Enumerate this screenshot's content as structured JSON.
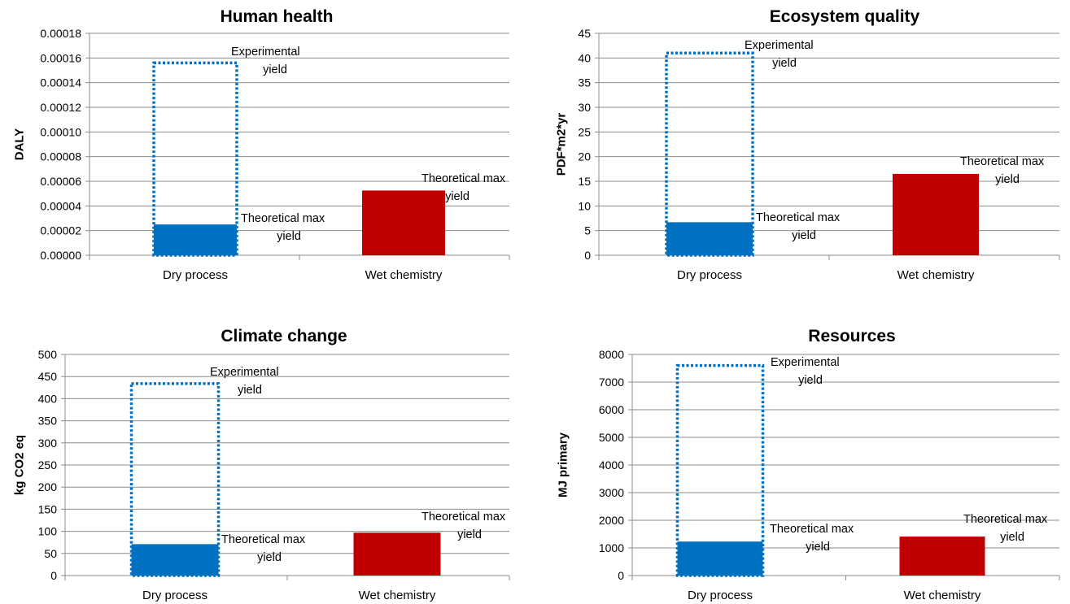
{
  "chart_data": [
    {
      "type": "bar",
      "title": "Human health",
      "ylabel": "DALY",
      "categories": [
        "Dry process",
        "Wet chemistry"
      ],
      "ylim": [
        0,
        0.00018
      ],
      "yticks": [
        "0.00000",
        "0.00002",
        "0.00004",
        "0.00006",
        "0.00008",
        "0.00010",
        "0.00012",
        "0.00014",
        "0.00016",
        "0.00018"
      ],
      "grid": true,
      "legend": "none",
      "series": [
        {
          "values": [
            2.5e-05,
            5.25e-05
          ],
          "colors": [
            "#0070c0",
            "#c00000"
          ]
        },
        {
          "values": [
            0.000156,
            null
          ],
          "style": "dotted-outline",
          "color": "#0070c0"
        }
      ],
      "annotations": [
        {
          "text": "Experimental yield",
          "lines": [
            "Experimental",
            "yield"
          ],
          "category": "Dry process",
          "y": 0.000156
        },
        {
          "text": "Theoretical max yield",
          "lines": [
            "Theoretical max",
            "yield"
          ],
          "category": "Dry process",
          "y": 2.5e-05
        },
        {
          "text": "Theoretical max yield",
          "lines": [
            "Theoretical max",
            "yield"
          ],
          "category": "Wet chemistry",
          "y": 5.25e-05
        }
      ]
    },
    {
      "type": "bar",
      "title": "Ecosystem quality",
      "ylabel": "PDF*m2*yr",
      "categories": [
        "Dry process",
        "Wet chemistry"
      ],
      "ylim": [
        0,
        45
      ],
      "yticks": [
        "0",
        "5",
        "10",
        "15",
        "20",
        "25",
        "30",
        "35",
        "40",
        "45"
      ],
      "grid": true,
      "legend": "none",
      "series": [
        {
          "values": [
            6.7,
            16.5
          ],
          "colors": [
            "#0070c0",
            "#c00000"
          ]
        },
        {
          "values": [
            41,
            null
          ],
          "style": "dotted-outline",
          "color": "#0070c0"
        }
      ],
      "annotations": [
        {
          "text": "Experimental yield",
          "lines": [
            "Experimental",
            "yield"
          ],
          "category": "Dry process",
          "y": 41
        },
        {
          "text": "Theoretical max yield",
          "lines": [
            "Theoretical max",
            "yield"
          ],
          "category": "Dry process",
          "y": 6.7
        },
        {
          "text": "Theoretical max yield",
          "lines": [
            "Theoretical max",
            "yield"
          ],
          "category": "Wet chemistry",
          "y": 16.5
        }
      ]
    },
    {
      "type": "bar",
      "title": "Climate change",
      "ylabel": "kg CO2 eq",
      "categories": [
        "Dry process",
        "Wet chemistry"
      ],
      "ylim": [
        0,
        500
      ],
      "yticks": [
        "0",
        "50",
        "100",
        "150",
        "200",
        "250",
        "300",
        "350",
        "400",
        "450",
        "500"
      ],
      "grid": true,
      "legend": "none",
      "series": [
        {
          "values": [
            71,
            97
          ],
          "colors": [
            "#0070c0",
            "#c00000"
          ]
        },
        {
          "values": [
            434,
            null
          ],
          "style": "dotted-outline",
          "color": "#0070c0"
        }
      ],
      "annotations": [
        {
          "text": "Experimental yield",
          "lines": [
            "Experimental",
            "yield"
          ],
          "category": "Dry process",
          "y": 434
        },
        {
          "text": "Theoretical max yield",
          "lines": [
            "Theoretical max",
            "yield"
          ],
          "category": "Dry process",
          "y": 71
        },
        {
          "text": "Theoretical max yield",
          "lines": [
            "Theoretical max",
            "yield"
          ],
          "category": "Wet chemistry",
          "y": 97
        }
      ]
    },
    {
      "type": "bar",
      "title": "Resources",
      "ylabel": "MJ primary",
      "categories": [
        "Dry process",
        "Wet chemistry"
      ],
      "ylim": [
        0,
        8000
      ],
      "yticks": [
        "0",
        "1000",
        "2000",
        "3000",
        "4000",
        "5000",
        "6000",
        "7000",
        "8000"
      ],
      "grid": true,
      "legend": "none",
      "series": [
        {
          "values": [
            1230,
            1410
          ],
          "colors": [
            "#0070c0",
            "#c00000"
          ]
        },
        {
          "values": [
            7600,
            null
          ],
          "style": "dotted-outline",
          "color": "#0070c0"
        }
      ],
      "annotations": [
        {
          "text": "Experimental yield",
          "lines": [
            "Experimental",
            "yield"
          ],
          "category": "Dry process",
          "y": 7600
        },
        {
          "text": "Theoretical max yield",
          "lines": [
            "Theoretical max",
            "yield"
          ],
          "category": "Dry process",
          "y": 1230
        },
        {
          "text": "Theoretical max yield",
          "lines": [
            "Theoretical max",
            "yield"
          ],
          "category": "Wet chemistry",
          "y": 1410
        }
      ]
    }
  ]
}
